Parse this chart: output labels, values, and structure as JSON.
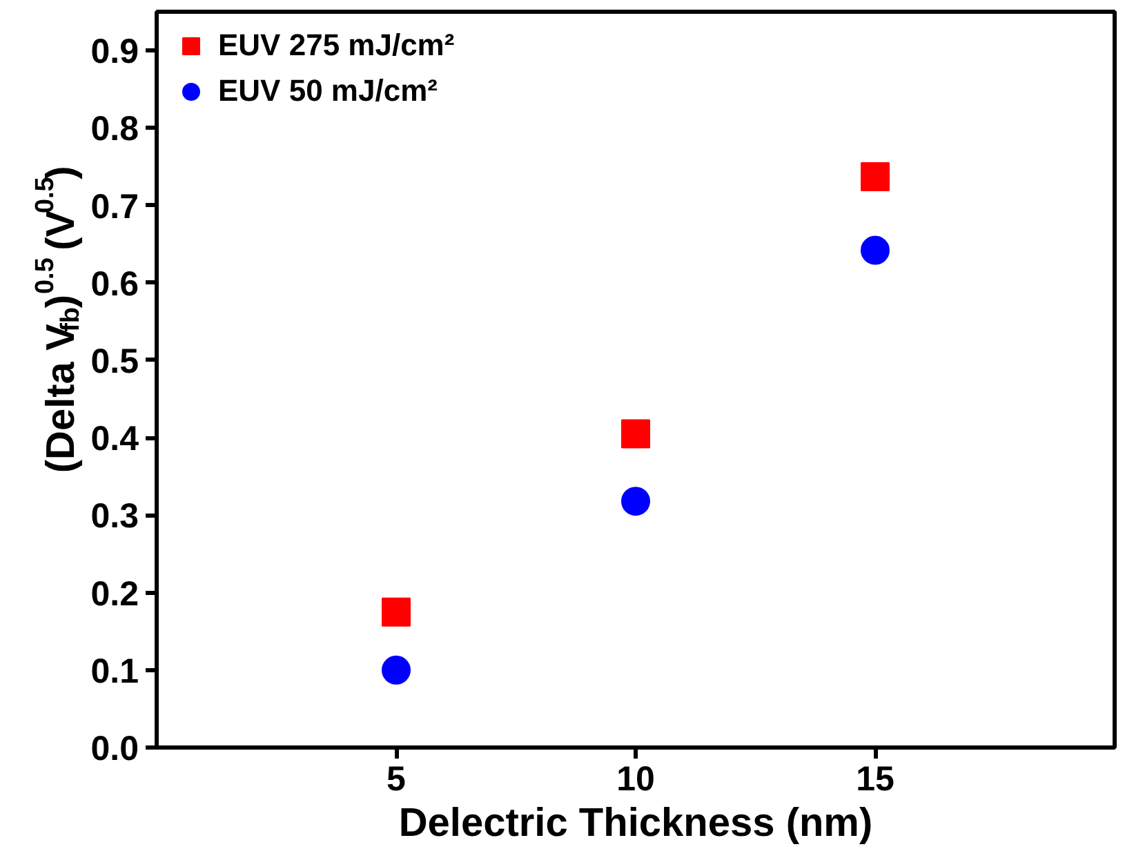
{
  "chart_data": {
    "type": "scatter",
    "xlabel": "Delectric Thickness (nm)",
    "ylabel": "(Delta V$_{fb}$)$^{0.5}$ (V$^{0.5}$)",
    "x": [
      5,
      10,
      15
    ],
    "series": [
      {
        "name": "EUV 275 mJ/cm²",
        "color": "#ff0000",
        "marker": "square",
        "values": [
          0.175,
          0.405,
          0.737
        ]
      },
      {
        "name": "EUV 50 mJ/cm²",
        "color": "#0000ff",
        "marker": "circle",
        "values": [
          0.1,
          0.318,
          0.642
        ]
      }
    ],
    "xlim": [
      0,
      20
    ],
    "ylim": [
      0,
      0.95
    ],
    "xticks": [
      5,
      10,
      15
    ],
    "yticks": [
      {
        "value": 0,
        "label": "0.0"
      },
      0.1,
      0.2,
      0.3,
      0.4,
      0.5,
      0.6,
      0.7,
      0.8,
      0.9
    ],
    "grid": false,
    "legend": "top left"
  }
}
